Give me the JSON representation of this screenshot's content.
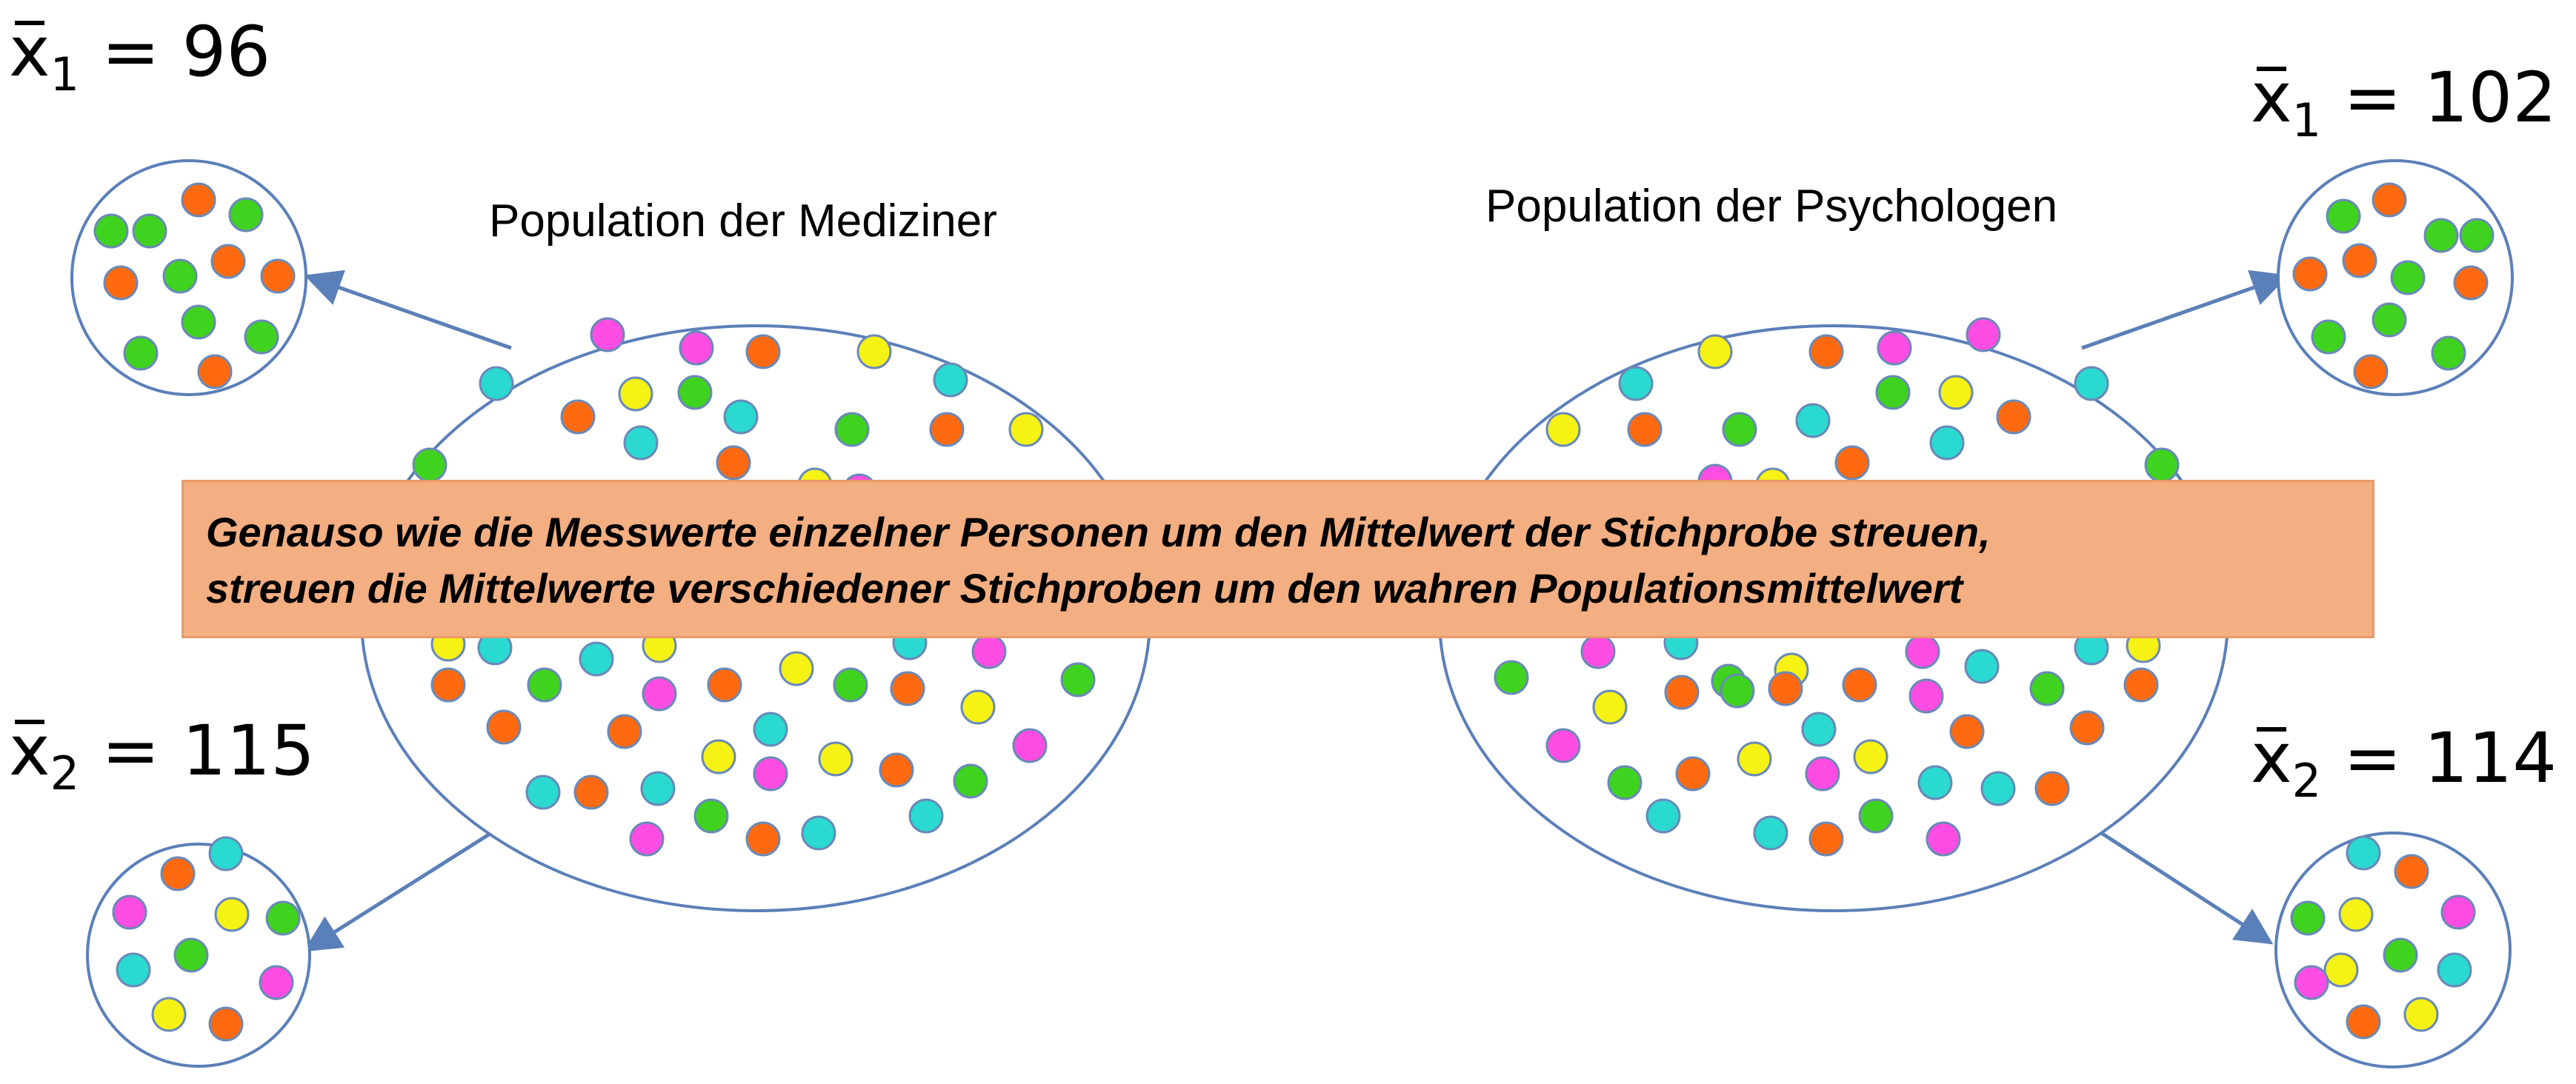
{
  "colors": {
    "ellipse_stroke": "#5b7fb8",
    "arrow": "#5b7fb8",
    "dot_stroke": "#6a89b8",
    "green": "#3fd21e",
    "orange": "#ff6a10",
    "cyan": "#2ad9d0",
    "yellow": "#f6f214",
    "magenta": "#ff4de3",
    "banner_bg": "#f3ae82"
  },
  "populations": {
    "left": {
      "title": "Population der Mediziner"
    },
    "right": {
      "title": "Population der Psychologen"
    }
  },
  "samples": {
    "left_top": {
      "var": "x",
      "sub": "1",
      "value": "= 96"
    },
    "left_bottom": {
      "var": "x",
      "sub": "2",
      "value": "= 115"
    },
    "right_top": {
      "var": "x",
      "sub": "1",
      "value": "= 102"
    },
    "right_bottom": {
      "var": "x",
      "sub": "2",
      "value": "= 114"
    }
  },
  "banner": {
    "line1": "Genauso wie die Messwerte einzelner Personen um den Mittelwert der Stichprobe streuen,",
    "line2": "streuen die Mittelwerte verschiedener Stichproben um den wahren Populationsmittelwert"
  }
}
